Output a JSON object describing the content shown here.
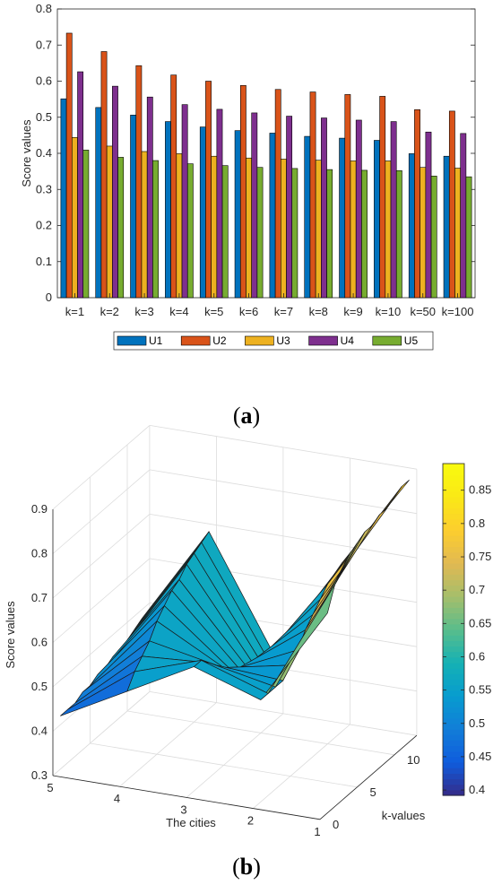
{
  "chart_data": [
    {
      "type": "bar",
      "panel_label": "a",
      "ylabel": "Score values",
      "ylim": [
        0,
        0.8
      ],
      "yticks": [
        "0",
        "0.1",
        "0.2",
        "0.3",
        "0.4",
        "0.5",
        "0.6",
        "0.7",
        "0.8"
      ],
      "grid": false,
      "legend_position": "bottom-center",
      "categories": [
        "k=1",
        "k=2",
        "k=3",
        "k=4",
        "k=5",
        "k=6",
        "k=7",
        "k=8",
        "k=9",
        "k=10",
        "k=50",
        "k=100"
      ],
      "series": [
        {
          "name": "U1",
          "color": "#0072BD",
          "values": [
            0.551,
            0.527,
            0.506,
            0.488,
            0.473,
            0.463,
            0.456,
            0.447,
            0.442,
            0.436,
            0.399,
            0.392
          ]
        },
        {
          "name": "U2",
          "color": "#D95319",
          "values": [
            0.733,
            0.682,
            0.643,
            0.617,
            0.6,
            0.588,
            0.577,
            0.57,
            0.563,
            0.558,
            0.521,
            0.517
          ]
        },
        {
          "name": "U3",
          "color": "#EDB120",
          "values": [
            0.444,
            0.42,
            0.405,
            0.399,
            0.392,
            0.387,
            0.384,
            0.381,
            0.379,
            0.379,
            0.361,
            0.359
          ]
        },
        {
          "name": "U4",
          "color": "#7E2F8E",
          "values": [
            0.626,
            0.586,
            0.556,
            0.535,
            0.522,
            0.512,
            0.503,
            0.498,
            0.492,
            0.488,
            0.459,
            0.455
          ]
        },
        {
          "name": "U5",
          "color": "#77AC30",
          "values": [
            0.409,
            0.389,
            0.38,
            0.371,
            0.366,
            0.361,
            0.358,
            0.355,
            0.353,
            0.352,
            0.337,
            0.335
          ]
        }
      ]
    },
    {
      "type": "surface",
      "panel_label": "b",
      "xlabel": "The cities",
      "ylabel": "k-values",
      "zlabel": "Score values",
      "zlim": [
        0.3,
        0.9
      ],
      "zticks": [
        "0.3",
        "0.4",
        "0.5",
        "0.6",
        "0.7",
        "0.8",
        "0.9"
      ],
      "xticks": [
        "1",
        "2",
        "3",
        "4",
        "5"
      ],
      "yticks": [
        "0",
        "5",
        "10"
      ],
      "colormap": "parula",
      "colorbar_ticks": [
        "0.4",
        "0.45",
        "0.5",
        "0.55",
        "0.6",
        "0.65",
        "0.7",
        "0.75",
        "0.8",
        "0.85"
      ],
      "colorbar_range": [
        0.392,
        0.89
      ],
      "cities": [
        1,
        2,
        3,
        4,
        5
      ],
      "k_values": [
        1,
        2,
        3,
        4,
        5,
        6,
        7,
        8,
        9,
        10,
        11,
        12
      ],
      "z": [
        [
          0.75,
          0.53,
          0.58,
          0.5,
          0.42
        ],
        [
          0.8,
          0.53,
          0.58,
          0.53,
          0.42
        ],
        [
          0.82,
          0.53,
          0.56,
          0.55,
          0.42
        ],
        [
          0.84,
          0.53,
          0.54,
          0.57,
          0.43
        ],
        [
          0.85,
          0.55,
          0.52,
          0.6,
          0.43
        ],
        [
          0.86,
          0.57,
          0.5,
          0.62,
          0.44
        ],
        [
          0.86,
          0.6,
          0.49,
          0.64,
          0.44
        ],
        [
          0.87,
          0.62,
          0.48,
          0.65,
          0.45
        ],
        [
          0.87,
          0.64,
          0.47,
          0.67,
          0.45
        ],
        [
          0.88,
          0.66,
          0.46,
          0.68,
          0.46
        ],
        [
          0.89,
          0.67,
          0.45,
          0.69,
          0.47
        ],
        [
          0.89,
          0.68,
          0.44,
          0.7,
          0.48
        ]
      ]
    }
  ]
}
